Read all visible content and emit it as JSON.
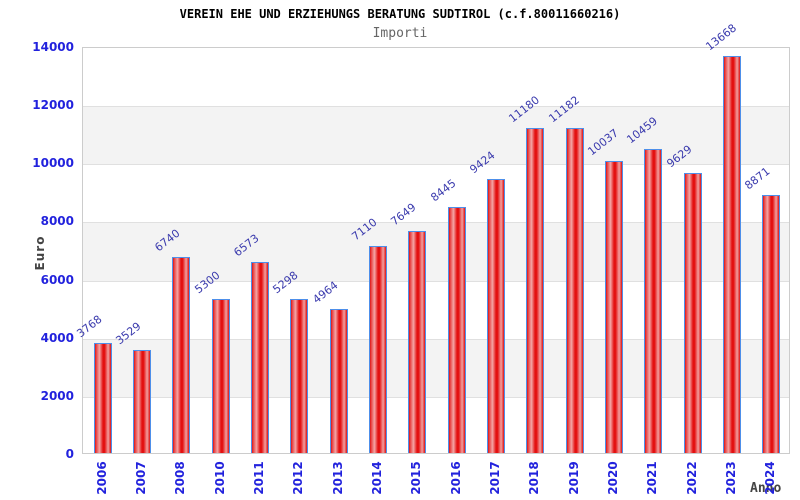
{
  "header": {
    "title": "VEREIN EHE UND ERZIEHUNGS BERATUNG SUDTIROL (c.f.80011660216)",
    "subtitle": "Importi"
  },
  "chart_data": {
    "type": "bar",
    "title": "VEREIN EHE UND ERZIEHUNGS BERATUNG SUDTIROL (c.f.80011660216)",
    "subtitle": "Importi",
    "xlabel": "Anno",
    "ylabel": "Euro",
    "categories": [
      "2006",
      "2007",
      "2008",
      "2010",
      "2011",
      "2012",
      "2013",
      "2014",
      "2015",
      "2016",
      "2017",
      "2018",
      "2019",
      "2020",
      "2021",
      "2022",
      "2023",
      "2024"
    ],
    "values": [
      3768,
      3529,
      6740,
      5300,
      6573,
      5298,
      4964,
      7110,
      7649,
      8445,
      9424,
      11180,
      11182,
      10037,
      10459,
      9629,
      13668,
      8871
    ],
    "ylim": [
      0,
      14000
    ],
    "ytick_interval": 2000,
    "yticks": [
      0,
      2000,
      4000,
      6000,
      8000,
      10000,
      12000,
      14000
    ],
    "grid": true,
    "legend": false,
    "colors": {
      "bar_main": "#e31010",
      "bar_highlight": "#f4a6a6",
      "bar_border": "#4d8fea",
      "tick_label": "#2222dd",
      "value_label": "#3a3aad",
      "axis_label": "#444444",
      "title": "#000000",
      "subtitle": "#666666",
      "band": "#f3f3f3",
      "gridline": "#e0e0e0",
      "plot_border": "#cccccc",
      "background": "#ffffff"
    }
  }
}
